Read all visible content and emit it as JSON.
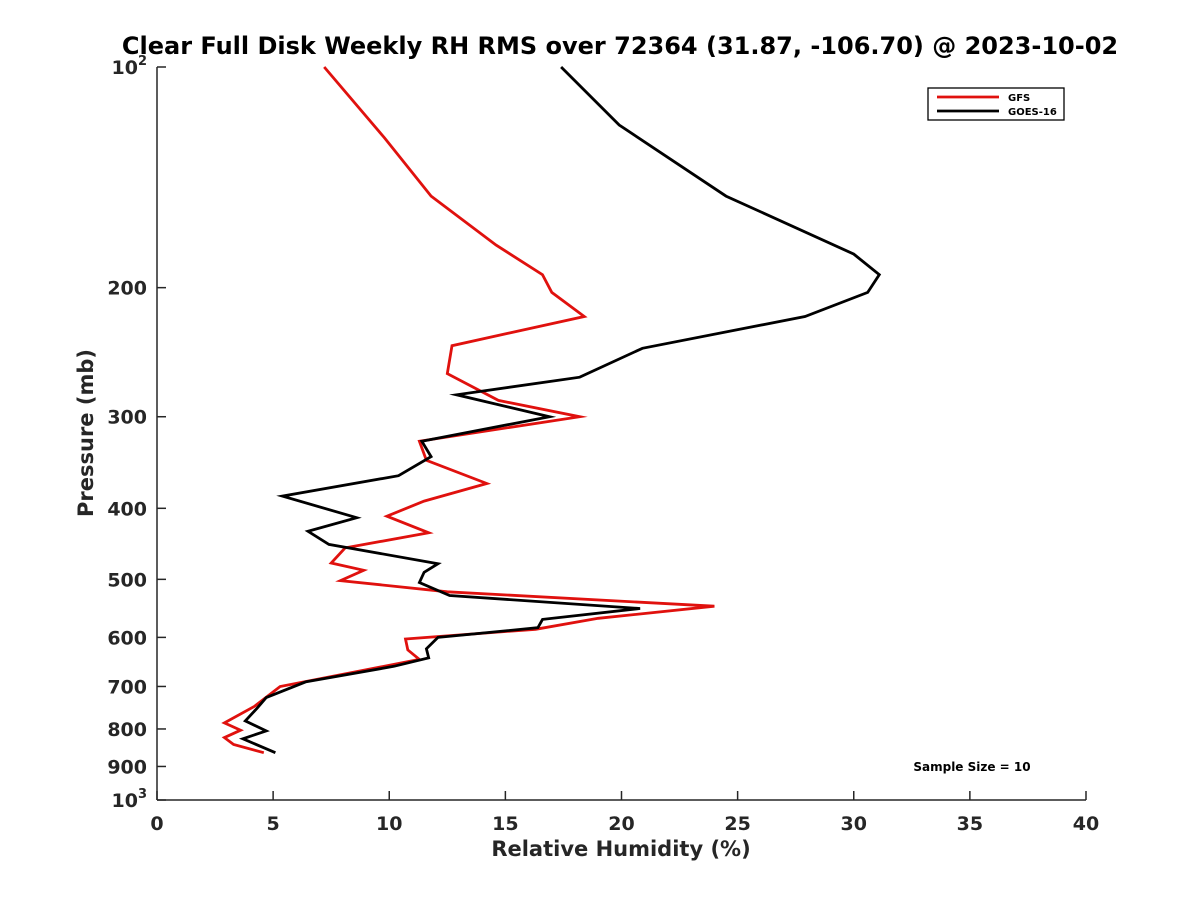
{
  "chart_data": {
    "type": "line",
    "title": "Clear Full Disk Weekly RH RMS over 72364 (31.87, -106.70) @ 2023-10-02",
    "xlabel": "Relative Humidity (%)",
    "ylabel": "Pressure (mb)",
    "xlim": [
      0,
      40
    ],
    "ylim": [
      100,
      1000
    ],
    "y_scale": "log",
    "y_reversed": true,
    "grid": false,
    "x_ticks": [
      0,
      5,
      10,
      15,
      20,
      25,
      30,
      35,
      40
    ],
    "y_ticks": [
      {
        "value": 100,
        "base": "10",
        "exp": "2"
      },
      {
        "value": 200,
        "label": "200"
      },
      {
        "value": 300,
        "label": "300"
      },
      {
        "value": 400,
        "label": "400"
      },
      {
        "value": 500,
        "label": "500"
      },
      {
        "value": 600,
        "label": "600"
      },
      {
        "value": 700,
        "label": "700"
      },
      {
        "value": 800,
        "label": "800"
      },
      {
        "value": 900,
        "label": "900"
      },
      {
        "value": 1000,
        "base": "10",
        "exp": "3"
      }
    ],
    "legend_position": "top-right",
    "annotation": "Sample Size = 10",
    "series": [
      {
        "name": "GFS",
        "color": "#e0110e",
        "points": [
          [
            7.2,
            100
          ],
          [
            9.8,
            125
          ],
          [
            11.8,
            150
          ],
          [
            14.6,
            175
          ],
          [
            16.6,
            192
          ],
          [
            17.0,
            203
          ],
          [
            18.4,
            219
          ],
          [
            12.7,
            240
          ],
          [
            12.5,
            262
          ],
          [
            14.7,
            285
          ],
          [
            18.2,
            300
          ],
          [
            11.3,
            324
          ],
          [
            11.6,
            344
          ],
          [
            14.2,
            370
          ],
          [
            11.5,
            391
          ],
          [
            9.9,
            410
          ],
          [
            11.7,
            432
          ],
          [
            8.1,
            453
          ],
          [
            7.5,
            475
          ],
          [
            8.9,
            486
          ],
          [
            7.9,
            502
          ],
          [
            12.5,
            520
          ],
          [
            24.0,
            544
          ],
          [
            19.0,
            565
          ],
          [
            16.3,
            585
          ],
          [
            10.7,
            603
          ],
          [
            10.8,
            624
          ],
          [
            11.3,
            643
          ],
          [
            5.3,
            700
          ],
          [
            4.2,
            745
          ],
          [
            2.9,
            785
          ],
          [
            3.6,
            803
          ],
          [
            2.9,
            822
          ],
          [
            3.3,
            840
          ],
          [
            4.6,
            862
          ]
        ]
      },
      {
        "name": "GOES-16",
        "color": "#000000",
        "points": [
          [
            17.4,
            100
          ],
          [
            19.9,
            120
          ],
          [
            24.5,
            150
          ],
          [
            30.0,
            180
          ],
          [
            31.1,
            192
          ],
          [
            30.6,
            203
          ],
          [
            27.9,
            219
          ],
          [
            20.9,
            242
          ],
          [
            18.2,
            265
          ],
          [
            12.9,
            280
          ],
          [
            16.9,
            300
          ],
          [
            11.4,
            324
          ],
          [
            11.8,
            340
          ],
          [
            10.4,
            361
          ],
          [
            5.4,
            385
          ],
          [
            8.6,
            412
          ],
          [
            6.5,
            430
          ],
          [
            7.4,
            448
          ],
          [
            12.1,
            476
          ],
          [
            11.5,
            489
          ],
          [
            11.3,
            505
          ],
          [
            12.6,
            526
          ],
          [
            20.8,
            548
          ],
          [
            16.6,
            567
          ],
          [
            16.4,
            582
          ],
          [
            12.1,
            600
          ],
          [
            11.6,
            622
          ],
          [
            11.7,
            640
          ],
          [
            10.2,
            657
          ],
          [
            6.4,
            690
          ],
          [
            4.7,
            725
          ],
          [
            4.3,
            750
          ],
          [
            3.8,
            780
          ],
          [
            4.7,
            805
          ],
          [
            3.7,
            825
          ],
          [
            5.1,
            862
          ]
        ]
      }
    ]
  }
}
